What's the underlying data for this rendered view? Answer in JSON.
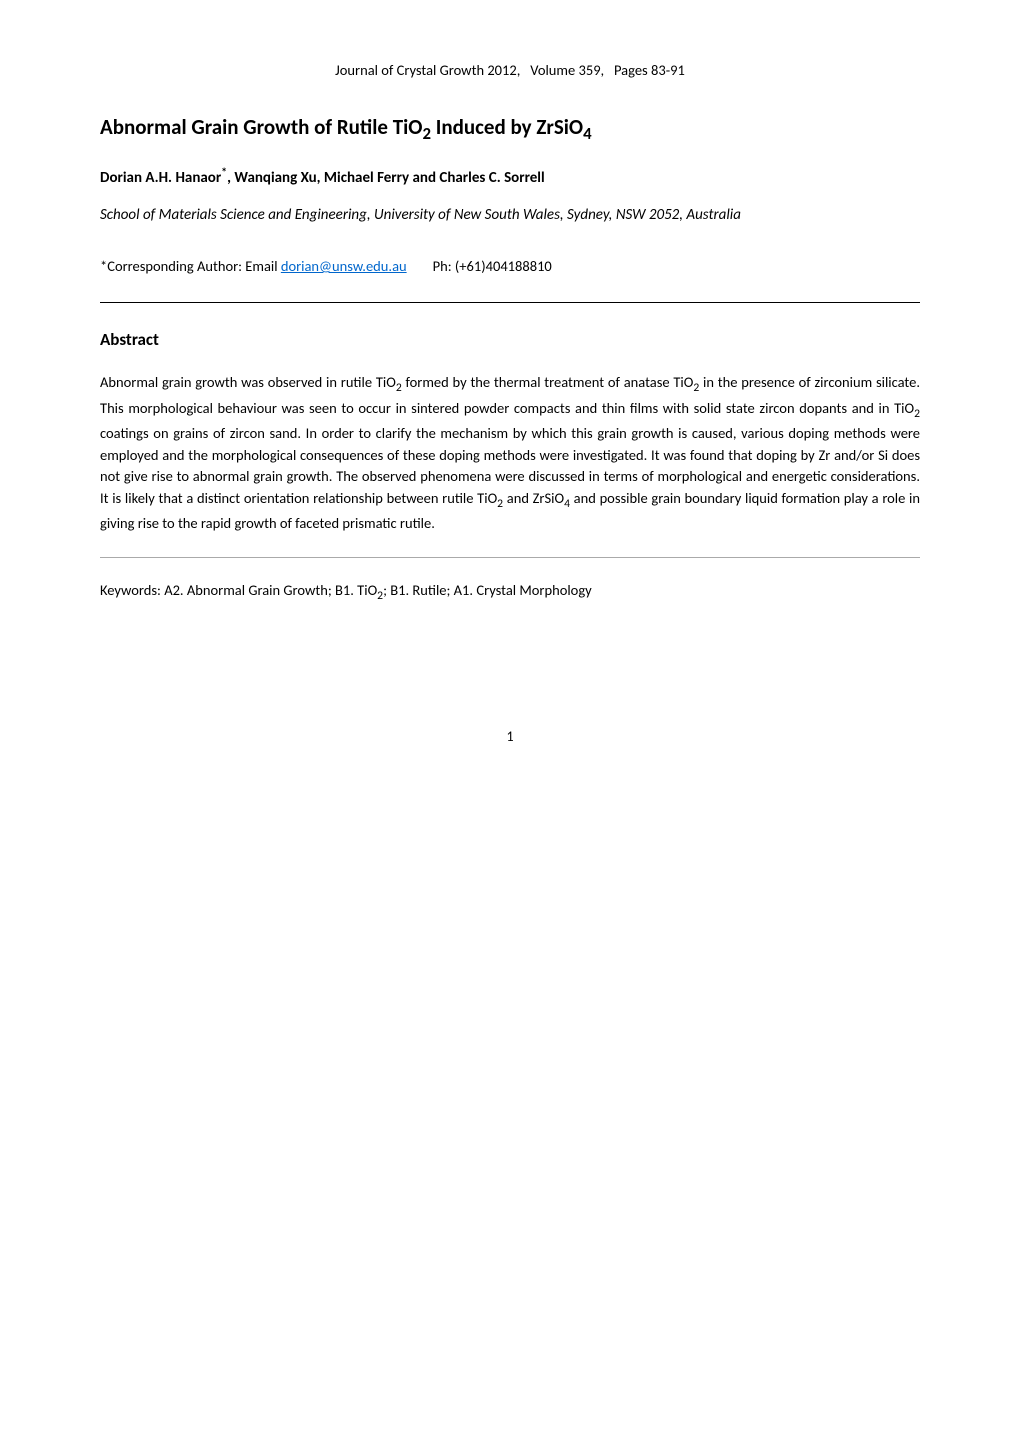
{
  "journal": {
    "name": "Journal of Crystal Growth 2012,",
    "volume": "Volume 359,",
    "pages": "Pages 83-91"
  },
  "title_parts": {
    "pre": "Abnormal Grain Growth of Rutile TiO",
    "sub1": "2",
    "mid": " Induced by ZrSiO",
    "sub2": "4"
  },
  "authors_parts": {
    "a1": "Dorian A.H. Hanaor",
    "sup": "*",
    "rest": ", Wanqiang Xu, Michael Ferry and Charles C. Sorrell"
  },
  "affiliation": "School of Materials Science and Engineering, University of New South Wales, Sydney, NSW 2052, Australia",
  "corresponding": {
    "label": "*Corresponding Author: Email ",
    "email": "dorian@unsw.edu.au",
    "phone": "Ph: (+61)404188810"
  },
  "section_heading": "Abstract",
  "abstract_parts": {
    "p1a": "Abnormal grain growth was observed in rutile TiO",
    "p1b": " formed by the thermal treatment of anatase TiO",
    "p1c": " in the presence of zirconium silicate. This morphological behaviour was seen to occur in sintered powder compacts and thin films with solid state zircon dopants and in TiO",
    "p1d": " coatings on grains of zircon sand. In order to clarify the mechanism by which this grain growth is caused, various doping methods were employed and the morphological consequences of these doping methods were investigated. It was found that doping by Zr and/or Si does not give rise to abnormal grain growth. The observed phenomena were discussed in terms of morphological and energetic considerations.  It is likely that a distinct orientation relationship between rutile TiO",
    "p1e": " and ZrSiO",
    "p1f": " and possible grain boundary liquid formation play a role in giving rise to the rapid growth of faceted prismatic rutile.",
    "sub2": "2",
    "sub4": "4"
  },
  "keywords_parts": {
    "pre": "Keywords: A2. Abnormal Grain Growth; B1. TiO",
    "sub": "2",
    "post": "; B1. Rutile; A1. Crystal Morphology"
  },
  "page_number": "1"
}
